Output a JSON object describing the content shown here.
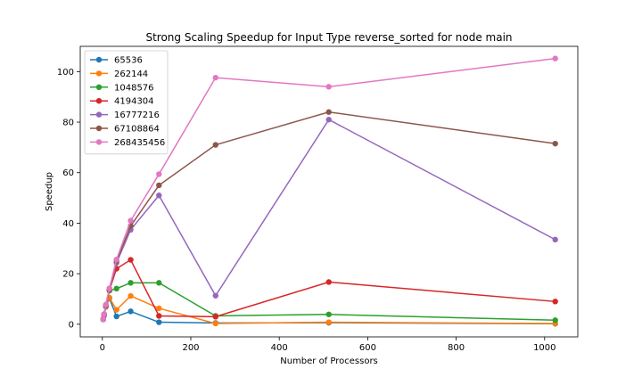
{
  "chart_data": {
    "type": "line",
    "title": "Strong Scaling Speedup for Input Type reverse_sorted for node main",
    "xlabel": "Number of Processors",
    "ylabel": "Speedup",
    "xlim": [
      -50,
      1075
    ],
    "ylim": [
      -5,
      110
    ],
    "xticks": [
      0,
      200,
      400,
      600,
      800,
      1000
    ],
    "yticks": [
      0,
      20,
      40,
      60,
      80,
      100
    ],
    "grid": false,
    "legend_position": "top-left",
    "x": [
      2,
      4,
      8,
      16,
      32,
      64,
      128,
      256,
      512,
      1024
    ],
    "series": [
      {
        "name": "65536",
        "color": "#1f77b4",
        "values": [
          1.9,
          3.5,
          6.9,
          10.2,
          3.1,
          5.1,
          0.8,
          0.5,
          0.6,
          0.2
        ]
      },
      {
        "name": "262144",
        "color": "#ff7f0e",
        "values": [
          2.0,
          3.8,
          7.1,
          10.5,
          5.7,
          11.2,
          6.3,
          0.3,
          0.8,
          0.3
        ]
      },
      {
        "name": "1048576",
        "color": "#2ca02c",
        "values": [
          2.0,
          3.9,
          7.4,
          13.3,
          14.1,
          16.4,
          16.4,
          3.3,
          3.9,
          1.6
        ]
      },
      {
        "name": "4194304",
        "color": "#d62728",
        "values": [
          2.0,
          3.9,
          7.5,
          13.6,
          22.0,
          25.5,
          3.3,
          3.0,
          16.7,
          9.0
        ]
      },
      {
        "name": "16777216",
        "color": "#9467bd",
        "values": [
          2.0,
          3.9,
          7.6,
          13.9,
          24.3,
          37.4,
          51.0,
          11.3,
          81.0,
          33.5
        ]
      },
      {
        "name": "67108864",
        "color": "#8c564b",
        "values": [
          2.0,
          4.0,
          7.7,
          14.1,
          25.0,
          38.9,
          55.0,
          71.0,
          84.0,
          71.5
        ]
      },
      {
        "name": "268435456",
        "color": "#e377c2",
        "values": [
          2.0,
          4.0,
          7.8,
          14.2,
          25.6,
          41.0,
          59.4,
          97.6,
          94.0,
          105.2
        ]
      }
    ]
  }
}
